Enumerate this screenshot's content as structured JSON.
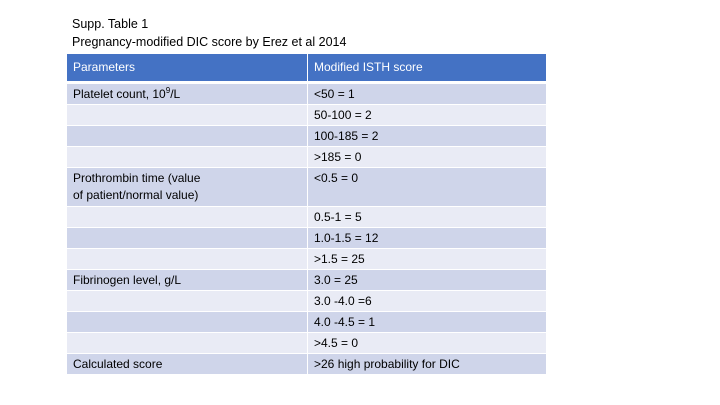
{
  "caption": {
    "line1": "Supp. Table 1",
    "line2": "Pregnancy-modified DIC score by Erez et al 2014"
  },
  "table": {
    "headers": [
      "Parameters",
      "Modified ISTH score"
    ],
    "rows": [
      {
        "param": "Platelet count, 10",
        "param_sup": "9",
        "param_suffix": "/L",
        "score": "<50 = 1"
      },
      {
        "param": "",
        "score": "50-100 = 2"
      },
      {
        "param": "",
        "score": "100-185 = 2"
      },
      {
        "param": "",
        "score": ">185 = 0"
      },
      {
        "param": "Prothrombin time (value",
        "param_line2": "of patient/normal value)",
        "score": "<0.5 = 0"
      },
      {
        "param": "",
        "score": "0.5-1 = 5"
      },
      {
        "param": "",
        "score": "1.0-1.5 = 12"
      },
      {
        "param": "",
        "score": ">1.5 = 25"
      },
      {
        "param": "Fibrinogen level, g/L",
        "score": "3.0 = 25"
      },
      {
        "param": "",
        "score": "3.0 -4.0 =6"
      },
      {
        "param": "",
        "score": "4.0 -4.5 = 1"
      },
      {
        "param": "",
        "score": ">4.5 = 0"
      },
      {
        "param": "Calculated score",
        "score": ">26 high probability for DIC"
      }
    ]
  },
  "colors": {
    "header_bg": "#4472c4",
    "row_odd_bg": "#cfd5ea",
    "row_even_bg": "#e9ebf5"
  }
}
